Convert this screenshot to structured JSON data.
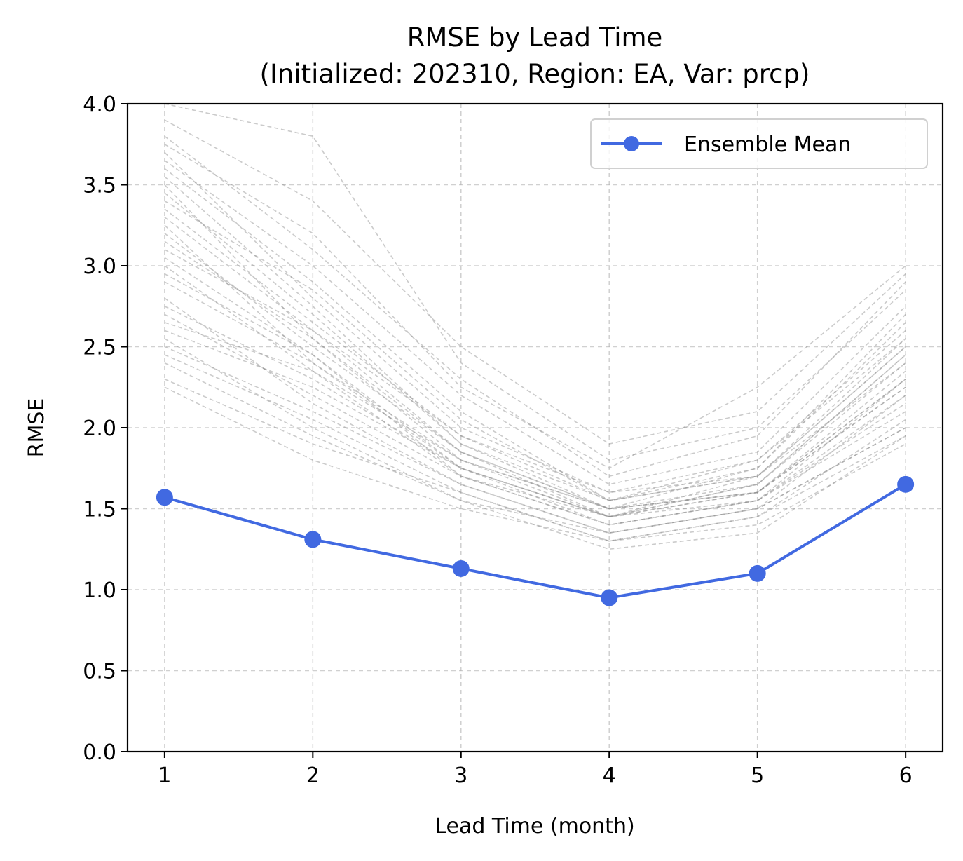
{
  "chart_data": {
    "type": "line",
    "title": "RMSE by Lead Time",
    "subtitle": "(Initialized: 202310, Region: EA, Var: prcp)",
    "xlabel": "Lead Time (month)",
    "ylabel": "RMSE",
    "x": [
      1,
      2,
      3,
      4,
      5,
      6
    ],
    "xlim": [
      0.75,
      6.25
    ],
    "ylim": [
      0,
      4
    ],
    "xticks": [
      "1",
      "2",
      "3",
      "4",
      "5",
      "6"
    ],
    "yticks": [
      "0.0",
      "0.5",
      "1.0",
      "1.5",
      "2.0",
      "2.5",
      "3.0",
      "3.5",
      "4.0"
    ],
    "grid": true,
    "legend": {
      "placement": "top-right",
      "entries": [
        "Ensemble Mean"
      ]
    },
    "series": [
      {
        "name": "Ensemble Mean",
        "color": "#4169e1",
        "marker": "circle",
        "style": "solid",
        "values": [
          1.57,
          1.31,
          1.13,
          0.95,
          1.1,
          1.65
        ]
      }
    ],
    "members": {
      "color": "#8c8c8c",
      "style": "dashed",
      "values": [
        [
          3.05,
          2.45,
          1.75,
          1.45,
          1.6,
          2.3
        ],
        [
          3.6,
          2.9,
          2.1,
          1.55,
          1.75,
          2.7
        ],
        [
          2.7,
          2.2,
          1.7,
          1.4,
          1.55,
          2.1
        ],
        [
          3.3,
          2.6,
          1.85,
          1.5,
          1.65,
          2.45
        ],
        [
          2.5,
          2.1,
          1.65,
          1.35,
          1.5,
          2.0
        ],
        [
          3.8,
          3.1,
          2.3,
          1.7,
          1.95,
          2.9
        ],
        [
          2.9,
          2.4,
          1.8,
          1.45,
          1.6,
          2.25
        ],
        [
          3.45,
          2.7,
          1.9,
          1.55,
          1.7,
          2.55
        ],
        [
          2.3,
          1.9,
          1.6,
          1.3,
          1.45,
          1.95
        ],
        [
          3.15,
          2.55,
          1.8,
          1.5,
          1.6,
          2.35
        ],
        [
          3.7,
          2.8,
          2.0,
          1.6,
          1.8,
          2.6
        ],
        [
          2.6,
          2.25,
          1.75,
          1.4,
          1.55,
          2.15
        ],
        [
          3.0,
          2.35,
          1.7,
          1.45,
          1.65,
          2.4
        ],
        [
          3.9,
          3.4,
          2.5,
          1.9,
          2.1,
          2.95
        ],
        [
          2.8,
          2.15,
          1.65,
          1.35,
          1.5,
          2.2
        ],
        [
          3.35,
          2.65,
          1.95,
          1.55,
          1.7,
          2.5
        ],
        [
          2.45,
          2.05,
          1.6,
          1.3,
          1.45,
          2.05
        ],
        [
          3.55,
          2.75,
          1.9,
          1.5,
          1.75,
          2.65
        ],
        [
          3.2,
          2.5,
          1.85,
          1.5,
          1.6,
          2.3
        ],
        [
          2.75,
          2.3,
          1.75,
          1.45,
          1.55,
          2.2
        ],
        [
          4.0,
          3.8,
          2.4,
          1.8,
          2.0,
          2.85
        ],
        [
          2.25,
          1.8,
          1.5,
          1.3,
          1.4,
          1.9
        ],
        [
          3.1,
          2.6,
          1.95,
          1.6,
          1.7,
          2.4
        ],
        [
          3.65,
          3.0,
          2.2,
          1.65,
          1.85,
          2.75
        ],
        [
          2.55,
          2.0,
          1.55,
          1.35,
          1.5,
          2.0
        ],
        [
          3.4,
          2.85,
          2.05,
          1.55,
          1.8,
          2.55
        ],
        [
          2.95,
          2.45,
          1.7,
          1.4,
          1.55,
          2.3
        ],
        [
          3.25,
          2.4,
          1.75,
          1.45,
          1.65,
          2.45
        ],
        [
          2.65,
          2.35,
          1.8,
          1.5,
          1.6,
          2.25
        ],
        [
          3.75,
          3.2,
          2.25,
          1.75,
          2.25,
          3.0
        ],
        [
          2.4,
          1.95,
          1.55,
          1.25,
          1.35,
          1.95
        ],
        [
          3.5,
          2.55,
          1.85,
          1.45,
          1.7,
          2.5
        ]
      ]
    }
  }
}
